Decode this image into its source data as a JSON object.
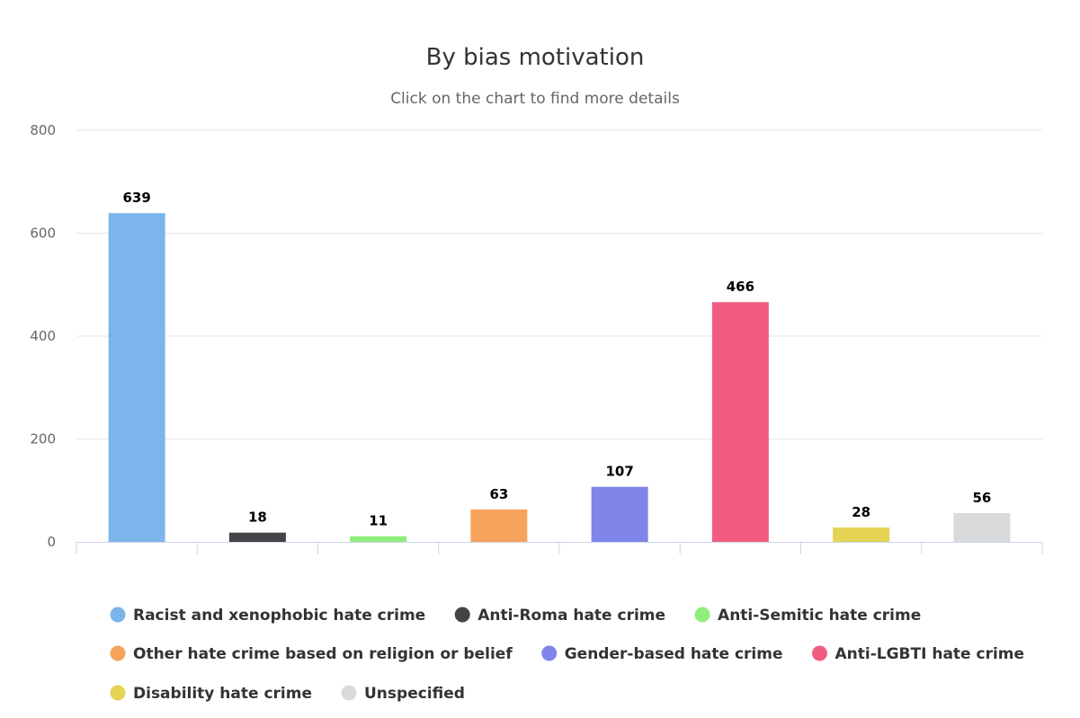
{
  "chart_data": {
    "type": "bar",
    "title": "By bias motivation",
    "subtitle": "Click on the chart to find more details",
    "ylim": [
      0,
      800
    ],
    "yticks": [
      "0",
      "200",
      "400",
      "600",
      "800"
    ],
    "grid": true,
    "legend_position": "bottom",
    "series": [
      {
        "name": "Racist and xenophobic hate crime",
        "value": 639,
        "color": "#7cb5ec"
      },
      {
        "name": "Anti-Roma hate crime",
        "value": 18,
        "color": "#434348"
      },
      {
        "name": "Anti-Semitic hate crime",
        "value": 11,
        "color": "#90ed7d"
      },
      {
        "name": "Other hate crime based on religion or belief",
        "value": 63,
        "color": "#f7a35c"
      },
      {
        "name": "Gender-based hate crime",
        "value": 107,
        "color": "#8085e9"
      },
      {
        "name": "Anti-LGBTI hate crime",
        "value": 466,
        "color": "#f15c80"
      },
      {
        "name": "Disability hate crime",
        "value": 28,
        "color": "#e4d354"
      },
      {
        "name": "Unspecified",
        "value": 56,
        "color": "#d8dadb"
      }
    ]
  }
}
